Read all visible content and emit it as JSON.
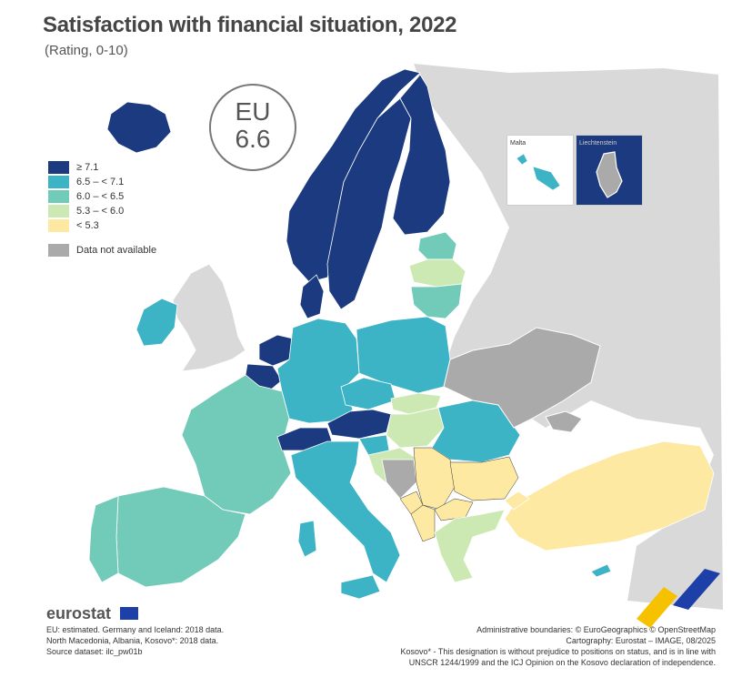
{
  "title": "Satisfaction with financial situation, 2022",
  "subtitle": "(Rating, 0-10)",
  "eu_badge": {
    "label": "EU",
    "value": "6.6"
  },
  "legend": [
    {
      "label": "≥ 7.1",
      "color": "#1c3a7f"
    },
    {
      "label": "6.5 – < 7.1",
      "color": "#3db3c6"
    },
    {
      "label": "6.0 – < 6.5",
      "color": "#72cbb8"
    },
    {
      "label": "5.3 – < 6.0",
      "color": "#cde9b3"
    },
    {
      "label": "< 5.3",
      "color": "#fde9a2"
    }
  ],
  "legend_na": {
    "label": "Data not available",
    "color": "#aaaaaa"
  },
  "insets": {
    "malta": "Malta",
    "liechtenstein": "Liechtenstein"
  },
  "map_colors": {
    "land_nodata": "#d9d9d9",
    "water": "#ffffff",
    "shadow": "#ebebeb",
    "border": "#333333"
  },
  "footer": {
    "brand": "eurostat",
    "notes": [
      "EU: estimated. Germany and Iceland: 2018 data.",
      "North Macedonia, Albania, Kosovo*: 2018 data.",
      "Source dataset: ilc_pw01b"
    ],
    "credits": [
      "Administrative boundaries: © EuroGeographics © OpenStreetMap",
      "Cartography: Eurostat – IMAGE, 08/2025",
      "Kosovo* - This designation is without prejudice to positions on status, and is in line with",
      "UNSCR 1244/1999 and the ICJ Opinion on the Kosovo declaration of independence."
    ]
  }
}
